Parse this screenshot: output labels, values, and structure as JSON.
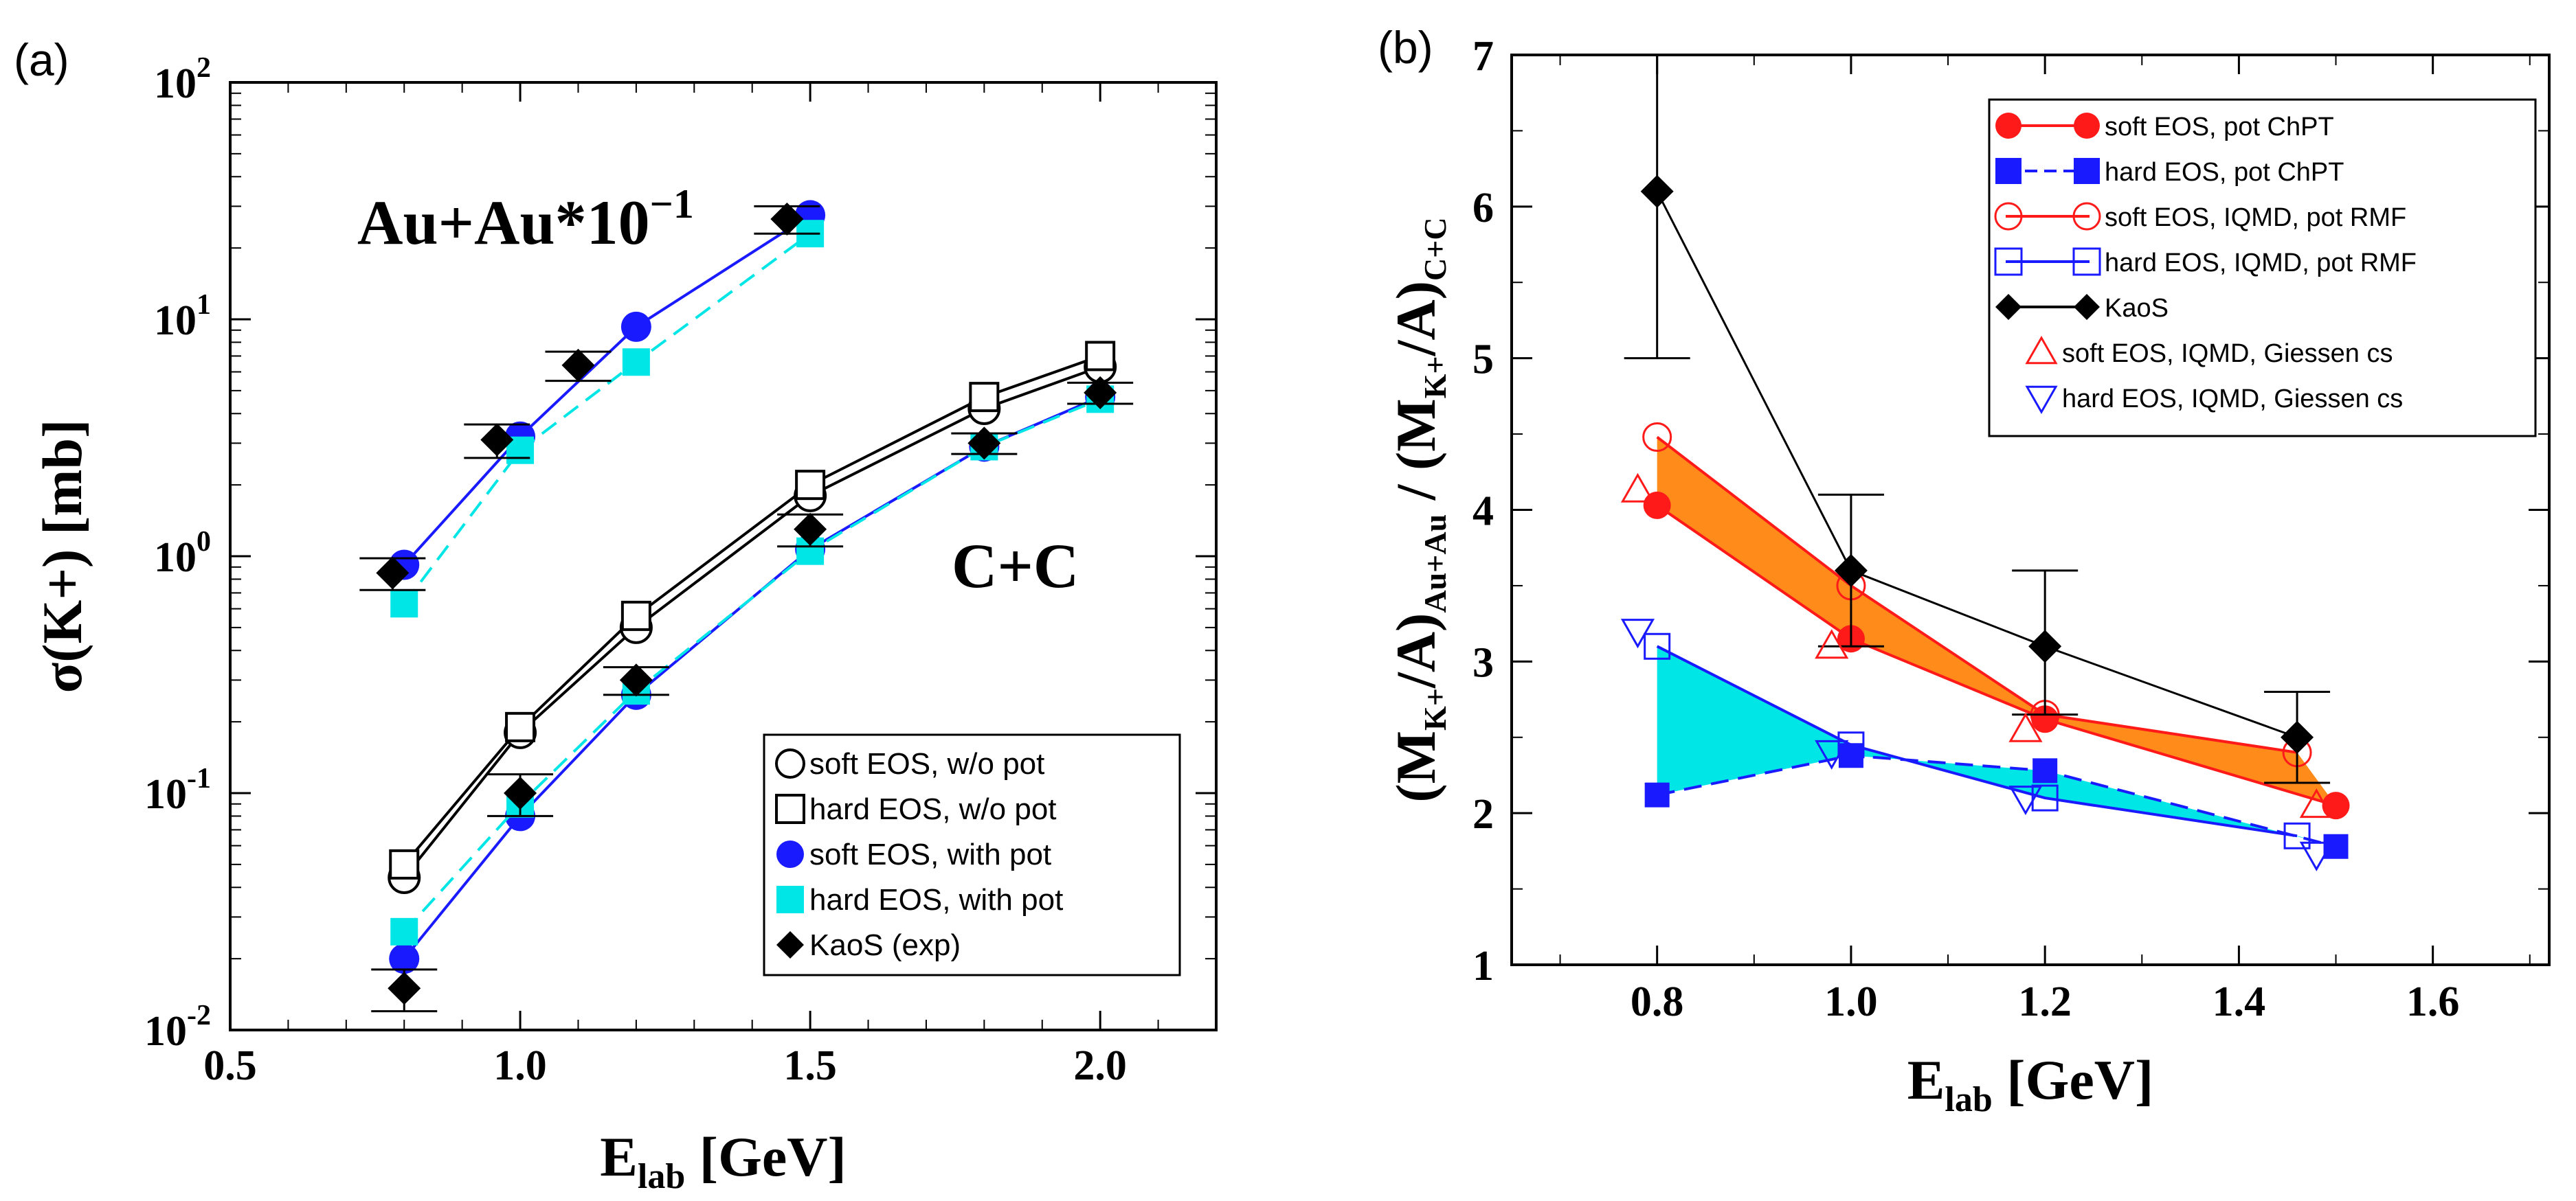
{
  "chart_data": [
    {
      "panel_label": "(a)",
      "type": "line",
      "ylabel": "σ(K+) [mb]",
      "xlabel": "E",
      "xlabel_sub": "lab",
      "xlabel_unit": " [GeV]",
      "yscale": "log",
      "xlim": [
        0.5,
        2.2
      ],
      "ylim": [
        0.01,
        100
      ],
      "xticks": [
        "0.5",
        "1.0",
        "1.5",
        "2.0"
      ],
      "xtick_values": [
        0.5,
        1.0,
        1.5,
        2.0
      ],
      "ytick_exponents": [
        "-2",
        "-1",
        "0",
        "1",
        "2"
      ],
      "ytick_base": "10",
      "annotations": {
        "auau_base": "Au+Au*10",
        "auau_exp": "−1",
        "cc": "C+C"
      },
      "legend": [
        "soft EOS, w/o pot",
        "hard EOS, w/o pot",
        "soft EOS, with pot",
        "hard EOS, with pot",
        "KaoS (exp)"
      ],
      "series": [
        {
          "name": "soft EOS, w/o pot",
          "group": "C+C",
          "x": [
            0.8,
            1.0,
            1.2,
            1.5,
            1.8,
            2.0
          ],
          "y": [
            0.044,
            0.18,
            0.5,
            1.8,
            4.2,
            6.3
          ]
        },
        {
          "name": "hard EOS, w/o pot",
          "group": "C+C",
          "x": [
            0.8,
            1.0,
            1.2,
            1.5,
            1.8,
            2.0
          ],
          "y": [
            0.05,
            0.19,
            0.56,
            2.0,
            4.7,
            7.0
          ]
        },
        {
          "name": "soft EOS, with pot",
          "group": "C+C",
          "x": [
            0.8,
            1.0,
            1.2,
            1.5,
            1.8,
            2.0
          ],
          "y": [
            0.02,
            0.08,
            0.26,
            1.07,
            2.9,
            4.7
          ]
        },
        {
          "name": "hard EOS, with pot",
          "group": "C+C",
          "x": [
            0.8,
            1.0,
            1.2,
            1.5,
            1.8,
            2.0
          ],
          "y": [
            0.026,
            0.09,
            0.27,
            1.05,
            2.9,
            4.6
          ]
        },
        {
          "name": "KaoS (exp)",
          "group": "C+C",
          "x": [
            0.8,
            1.0,
            1.2,
            1.5,
            1.8,
            2.0
          ],
          "y": [
            0.015,
            0.1,
            0.3,
            1.3,
            3.0,
            4.9
          ],
          "err_lo": [
            0.012,
            0.08,
            0.26,
            1.1,
            2.7,
            4.4
          ],
          "err_hi": [
            0.018,
            0.12,
            0.34,
            1.5,
            3.3,
            5.4
          ]
        },
        {
          "name": "soft EOS, with pot",
          "group": "Au+Au",
          "x": [
            0.8,
            1.0,
            1.2,
            1.5
          ],
          "y": [
            0.92,
            3.2,
            9.3,
            27.5
          ]
        },
        {
          "name": "hard EOS, with pot",
          "group": "Au+Au",
          "x": [
            0.8,
            1.0,
            1.2,
            1.5
          ],
          "y": [
            0.63,
            2.8,
            6.6,
            23.0
          ]
        },
        {
          "name": "KaoS (exp)",
          "group": "Au+Au",
          "x": [
            0.78,
            0.96,
            1.1,
            1.46
          ],
          "y": [
            0.85,
            3.1,
            6.4,
            26.5
          ],
          "err_lo": [
            0.72,
            2.6,
            5.5,
            23.0
          ],
          "err_hi": [
            0.98,
            3.6,
            7.3,
            30.0
          ]
        }
      ]
    },
    {
      "panel_label": "(b)",
      "type": "line",
      "ylabel_parts": [
        "(M",
        "K+",
        "/A)",
        "Au+Au",
        " / (M",
        "K+",
        "/A)",
        "C+C"
      ],
      "xlabel": "E",
      "xlabel_sub": "lab",
      "xlabel_unit": " [GeV]",
      "xlim": [
        0.65,
        1.72
      ],
      "ylim": [
        1,
        7
      ],
      "xticks": [
        "0.8",
        "1.0",
        "1.2",
        "1.4",
        "1.6"
      ],
      "xtick_values": [
        0.8,
        1.0,
        1.2,
        1.4,
        1.6
      ],
      "yticks": [
        "1",
        "2",
        "3",
        "4",
        "5",
        "6",
        "7"
      ],
      "ytick_values": [
        1,
        2,
        3,
        4,
        5,
        6,
        7
      ],
      "legend": [
        "soft EOS, pot ChPT",
        "hard EOS, pot ChPT",
        "soft EOS, IQMD, pot RMF",
        "hard EOS, IQMD, pot RMF",
        "KaoS",
        "soft EOS, IQMD, Giessen cs",
        "hard EOS, IQMD, Giessen cs"
      ],
      "series": [
        {
          "name": "soft EOS, pot ChPT",
          "x": [
            0.8,
            1.0,
            1.2,
            1.5
          ],
          "y": [
            4.03,
            3.15,
            2.62,
            2.05
          ]
        },
        {
          "name": "hard EOS, pot ChPT",
          "x": [
            0.8,
            1.0,
            1.2,
            1.5
          ],
          "y": [
            2.12,
            2.38,
            2.28,
            1.78
          ]
        },
        {
          "name": "soft EOS, IQMD, pot RMF",
          "x": [
            0.8,
            1.0,
            1.2,
            1.46
          ],
          "y": [
            4.48,
            3.5,
            2.65,
            2.4
          ]
        },
        {
          "name": "hard EOS, IQMD, pot RMF",
          "x": [
            0.8,
            1.0,
            1.2,
            1.46
          ],
          "y": [
            3.1,
            2.45,
            2.1,
            1.85
          ]
        },
        {
          "name": "KaoS",
          "x": [
            0.8,
            1.0,
            1.2,
            1.46
          ],
          "y": [
            6.1,
            3.6,
            3.1,
            2.5
          ],
          "err_lo": [
            5.0,
            3.1,
            2.65,
            2.2
          ],
          "err_hi": [
            7.0,
            4.1,
            3.6,
            2.8
          ]
        },
        {
          "name": "soft EOS, IQMD, Giessen cs",
          "x": [
            0.78,
            0.98,
            1.18,
            1.48
          ],
          "y": [
            4.13,
            3.1,
            2.55,
            2.05
          ]
        },
        {
          "name": "hard EOS, IQMD, Giessen cs",
          "x": [
            0.78,
            0.98,
            1.18,
            1.48
          ],
          "y": [
            3.2,
            2.4,
            2.1,
            1.73
          ]
        }
      ]
    }
  ]
}
